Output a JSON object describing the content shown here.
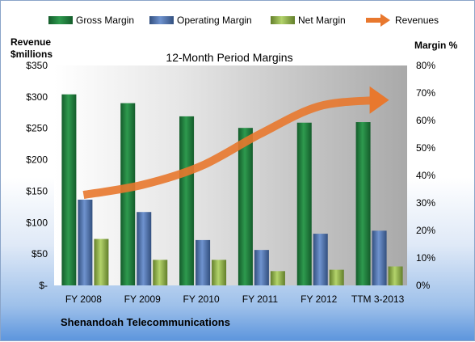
{
  "chart_data": {
    "type": "bar",
    "title": "12-Month Period Margins",
    "company": "Shenandoah Telecommunications",
    "left_axis": {
      "label_line1": "Revenue",
      "label_line2": "$millions",
      "min": 0,
      "max": 350,
      "step": 50,
      "ticks": [
        "$-",
        "$50",
        "$100",
        "$150",
        "$200",
        "$250",
        "$300",
        "$350"
      ]
    },
    "right_axis": {
      "label": "Margin %",
      "min": 0,
      "max": 80,
      "step": 10,
      "ticks": [
        "0%",
        "10%",
        "20%",
        "30%",
        "40%",
        "50%",
        "60%",
        "70%",
        "80%"
      ]
    },
    "categories": [
      "FY 2008",
      "FY 2009",
      "FY 2010",
      "FY 2011",
      "FY 2012",
      "TTM 3-2013"
    ],
    "series": [
      {
        "name": "Gross Margin",
        "axis": "right",
        "color": "#1f7a3c",
        "values": [
          69.5,
          66.3,
          61.5,
          57.3,
          59.2,
          59.4
        ]
      },
      {
        "name": "Operating Margin",
        "axis": "right",
        "color": "#4a6fae",
        "values": [
          31.2,
          26.7,
          16.5,
          12.9,
          18.8,
          19.9
        ]
      },
      {
        "name": "Net Margin",
        "axis": "right",
        "color": "#8db04a",
        "values": [
          16.9,
          9.3,
          9.3,
          5.2,
          5.7,
          6.9
        ]
      }
    ],
    "line_series": {
      "name": "Revenues",
      "axis": "left",
      "color": "#e8782e",
      "values": [
        144,
        160,
        190,
        241,
        285,
        295
      ]
    },
    "legend_position": "top",
    "grid": false
  }
}
